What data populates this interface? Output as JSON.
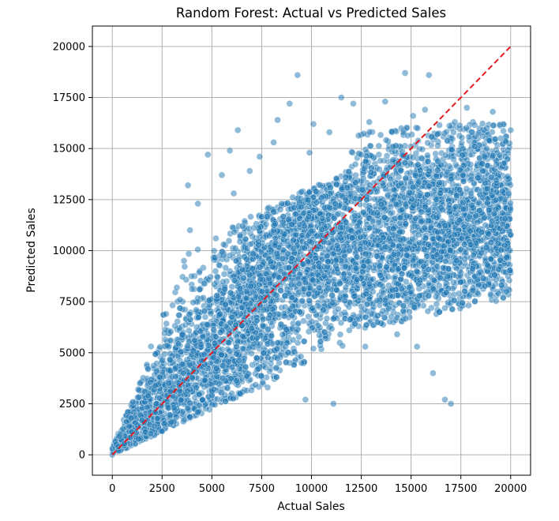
{
  "chart_data": {
    "type": "scatter",
    "title": "Random Forest: Actual vs Predicted Sales",
    "xlabel": "Actual Sales",
    "ylabel": "Predicted Sales",
    "xlim": [
      -1000,
      21000
    ],
    "ylim": [
      -1000,
      21000
    ],
    "x_ticks": [
      0,
      2500,
      5000,
      7500,
      10000,
      12500,
      15000,
      17500,
      20000
    ],
    "y_ticks": [
      0,
      2500,
      5000,
      7500,
      10000,
      12500,
      15000,
      17500,
      20000
    ],
    "x_tick_labels": [
      "0",
      "2500",
      "5000",
      "7500",
      "10000",
      "12500",
      "15000",
      "17500",
      "20000"
    ],
    "y_tick_labels": [
      "0",
      "2500",
      "5000",
      "7500",
      "10000",
      "12500",
      "15000",
      "17500",
      "20000"
    ],
    "grid": true,
    "point_color": "#1f77b4",
    "reference_line": {
      "style": "dashed",
      "color": "#e31a1c",
      "from": [
        0,
        0
      ],
      "to": [
        20000,
        20000
      ]
    },
    "series": [
      {
        "values": [
          [
            0,
            0
          ],
          [
            300,
            400
          ],
          [
            600,
            550
          ],
          [
            900,
            850
          ],
          [
            1200,
            1100
          ],
          [
            1500,
            1700
          ],
          [
            1800,
            2900
          ],
          [
            2100,
            1400
          ],
          [
            2400,
            3800
          ],
          [
            2700,
            6900
          ],
          [
            2900,
            5600
          ],
          [
            3100,
            2300
          ],
          [
            3400,
            7600
          ],
          [
            3600,
            9500
          ],
          [
            3800,
            13200
          ],
          [
            3900,
            11000
          ],
          [
            4100,
            4200
          ],
          [
            4300,
            12300
          ],
          [
            4600,
            8400
          ],
          [
            4800,
            14700
          ],
          [
            5000,
            3100
          ],
          [
            5200,
            10600
          ],
          [
            5500,
            13700
          ],
          [
            5700,
            6300
          ],
          [
            5900,
            14900
          ],
          [
            6100,
            12800
          ],
          [
            6300,
            15900
          ],
          [
            6400,
            9300
          ],
          [
            6700,
            4300
          ],
          [
            6900,
            13900
          ],
          [
            7100,
            11100
          ],
          [
            7400,
            14600
          ],
          [
            7600,
            7100
          ],
          [
            7800,
            3300
          ],
          [
            8100,
            15300
          ],
          [
            8300,
            16400
          ],
          [
            8500,
            12300
          ],
          [
            8700,
            5300
          ],
          [
            8900,
            17200
          ],
          [
            9100,
            10100
          ],
          [
            9300,
            18600
          ],
          [
            9500,
            4500
          ],
          [
            9700,
            2700
          ],
          [
            9900,
            14800
          ],
          [
            10100,
            16200
          ],
          [
            10300,
            7300
          ],
          [
            10500,
            12600
          ],
          [
            10700,
            5700
          ],
          [
            10900,
            15800
          ],
          [
            11100,
            2500
          ],
          [
            11300,
            9100
          ],
          [
            11500,
            17500
          ],
          [
            11700,
            13400
          ],
          [
            11900,
            6100
          ],
          [
            12100,
            17200
          ],
          [
            12300,
            11200
          ],
          [
            12500,
            14700
          ],
          [
            12700,
            5300
          ],
          [
            12900,
            16300
          ],
          [
            13100,
            8600
          ],
          [
            13300,
            12900
          ],
          [
            13500,
            6900
          ],
          [
            13700,
            17300
          ],
          [
            13900,
            10600
          ],
          [
            14100,
            15100
          ],
          [
            14300,
            5900
          ],
          [
            14500,
            13300
          ],
          [
            14700,
            18700
          ],
          [
            14900,
            8200
          ],
          [
            15100,
            16600
          ],
          [
            15300,
            5300
          ],
          [
            15500,
            11900
          ],
          [
            15700,
            16900
          ],
          [
            15900,
            18600
          ],
          [
            16100,
            4000
          ],
          [
            16300,
            9800
          ],
          [
            16500,
            14200
          ],
          [
            16700,
            2700
          ],
          [
            16900,
            12100
          ],
          [
            17000,
            2500
          ],
          [
            17200,
            16300
          ],
          [
            17400,
            7900
          ],
          [
            17600,
            13700
          ],
          [
            17800,
            17000
          ],
          [
            18000,
            10300
          ],
          [
            18200,
            15100
          ],
          [
            18400,
            8900
          ],
          [
            18600,
            12600
          ],
          [
            18800,
            16000
          ],
          [
            19000,
            9600
          ],
          [
            19100,
            16800
          ],
          [
            19300,
            13300
          ],
          [
            19400,
            7900
          ],
          [
            19500,
            15500
          ],
          [
            19600,
            11300
          ],
          [
            19700,
            14300
          ],
          [
            19800,
            8000
          ],
          [
            19900,
            12800
          ],
          [
            20000,
            15900
          ]
        ]
      }
    ]
  }
}
